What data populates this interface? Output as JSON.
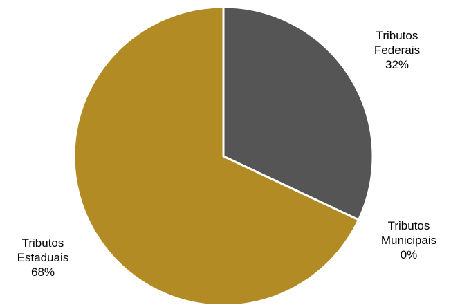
{
  "chart_data": {
    "type": "pie",
    "title": "",
    "slices": [
      {
        "label_lines": [
          "Tributos",
          "Federais"
        ],
        "percent_label": "32%",
        "value": 32,
        "color": "#555555"
      },
      {
        "label_lines": [
          "Tributos",
          "Municipais"
        ],
        "percent_label": "0%",
        "value": 0,
        "color": "#7f7f7f"
      },
      {
        "label_lines": [
          "Tributos",
          "Estaduais"
        ],
        "percent_label": "68%",
        "value": 68,
        "color": "#b38b24"
      }
    ],
    "start_angle_deg": 0,
    "direction": "clockwise",
    "slice_border_color": "#ffffff",
    "legend": "none"
  }
}
